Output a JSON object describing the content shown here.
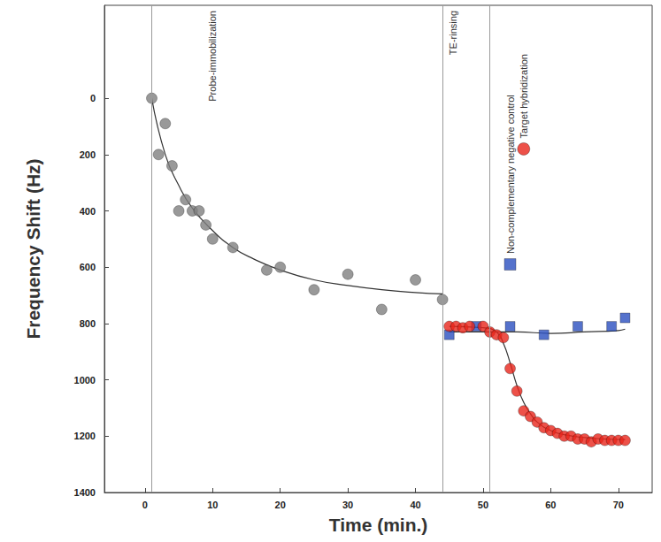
{
  "chart_data": {
    "type": "scatter",
    "x_label": "Time (min.)",
    "y_label": "Frequency Shift (Hz)",
    "xlim": [
      -6,
      75
    ],
    "xticks": [
      0,
      10,
      20,
      30,
      40,
      50,
      60,
      70
    ],
    "ylim": [
      1400,
      -330
    ],
    "yticks": [
      0,
      200,
      400,
      600,
      800,
      1000,
      1200,
      1400
    ],
    "grid": false,
    "vlines": [
      1,
      44,
      51
    ],
    "series": [
      {
        "color": "#7f7f7f",
        "marker": "circle",
        "x": [
          1,
          2,
          3,
          4,
          5,
          6,
          7,
          8,
          9,
          10,
          13,
          18,
          20,
          25,
          30,
          35,
          40,
          44
        ],
        "values": [
          0,
          200,
          90,
          240,
          400,
          360,
          400,
          400,
          450,
          500,
          530,
          610,
          600,
          680,
          625,
          750,
          645,
          715
        ]
      },
      {
        "color": "#2a4fbf",
        "marker": "square",
        "x": [
          45,
          49,
          54,
          59,
          64,
          69,
          71
        ],
        "values": [
          840,
          810,
          810,
          840,
          810,
          810,
          780
        ]
      },
      {
        "color": "#e8251b",
        "marker": "circle",
        "x": [
          45,
          46,
          47,
          48,
          50,
          51,
          52,
          53,
          54,
          55,
          56,
          57,
          58,
          59,
          60,
          61,
          62,
          63,
          64,
          65,
          66,
          67,
          68,
          69,
          70,
          71
        ],
        "values": [
          810,
          810,
          815,
          810,
          810,
          830,
          840,
          850,
          960,
          1040,
          1110,
          1130,
          1150,
          1170,
          1180,
          1190,
          1200,
          1200,
          1210,
          1210,
          1220,
          1210,
          1215,
          1215,
          1215,
          1215
        ]
      },
      {
        "type": "line",
        "color": "#333333",
        "marker": "none",
        "line_style": "solid",
        "x": [
          1,
          3,
          5,
          7,
          10,
          13,
          16,
          20,
          25,
          30,
          35,
          40,
          44
        ],
        "values": [
          0,
          200,
          310,
          390,
          470,
          530,
          570,
          610,
          645,
          665,
          680,
          690,
          695
        ]
      },
      {
        "type": "line",
        "color": "#333333",
        "marker": "none",
        "line_style": "solid",
        "x": [
          45,
          50,
          55,
          60,
          65,
          70,
          71
        ],
        "values": [
          830,
          830,
          830,
          835,
          830,
          825,
          820
        ]
      },
      {
        "type": "line",
        "color": "#333333",
        "marker": "none",
        "line_style": "solid",
        "x": [
          45,
          50,
          52,
          53,
          54,
          55,
          56,
          57,
          58,
          60,
          62,
          65,
          68,
          71
        ],
        "values": [
          810,
          815,
          830,
          870,
          940,
          1020,
          1080,
          1120,
          1150,
          1180,
          1195,
          1205,
          1210,
          1212
        ]
      }
    ],
    "annotations": [
      {
        "text": "Probe-immobilization",
        "x": 10
      },
      {
        "text": "TE-rinsing",
        "x": 45.5
      },
      {
        "text": "Non-complementary negative control",
        "x": 54,
        "y": 590,
        "series": 1
      },
      {
        "text": "Target hybridization",
        "x": 56,
        "y": 180,
        "series": 2
      }
    ]
  }
}
